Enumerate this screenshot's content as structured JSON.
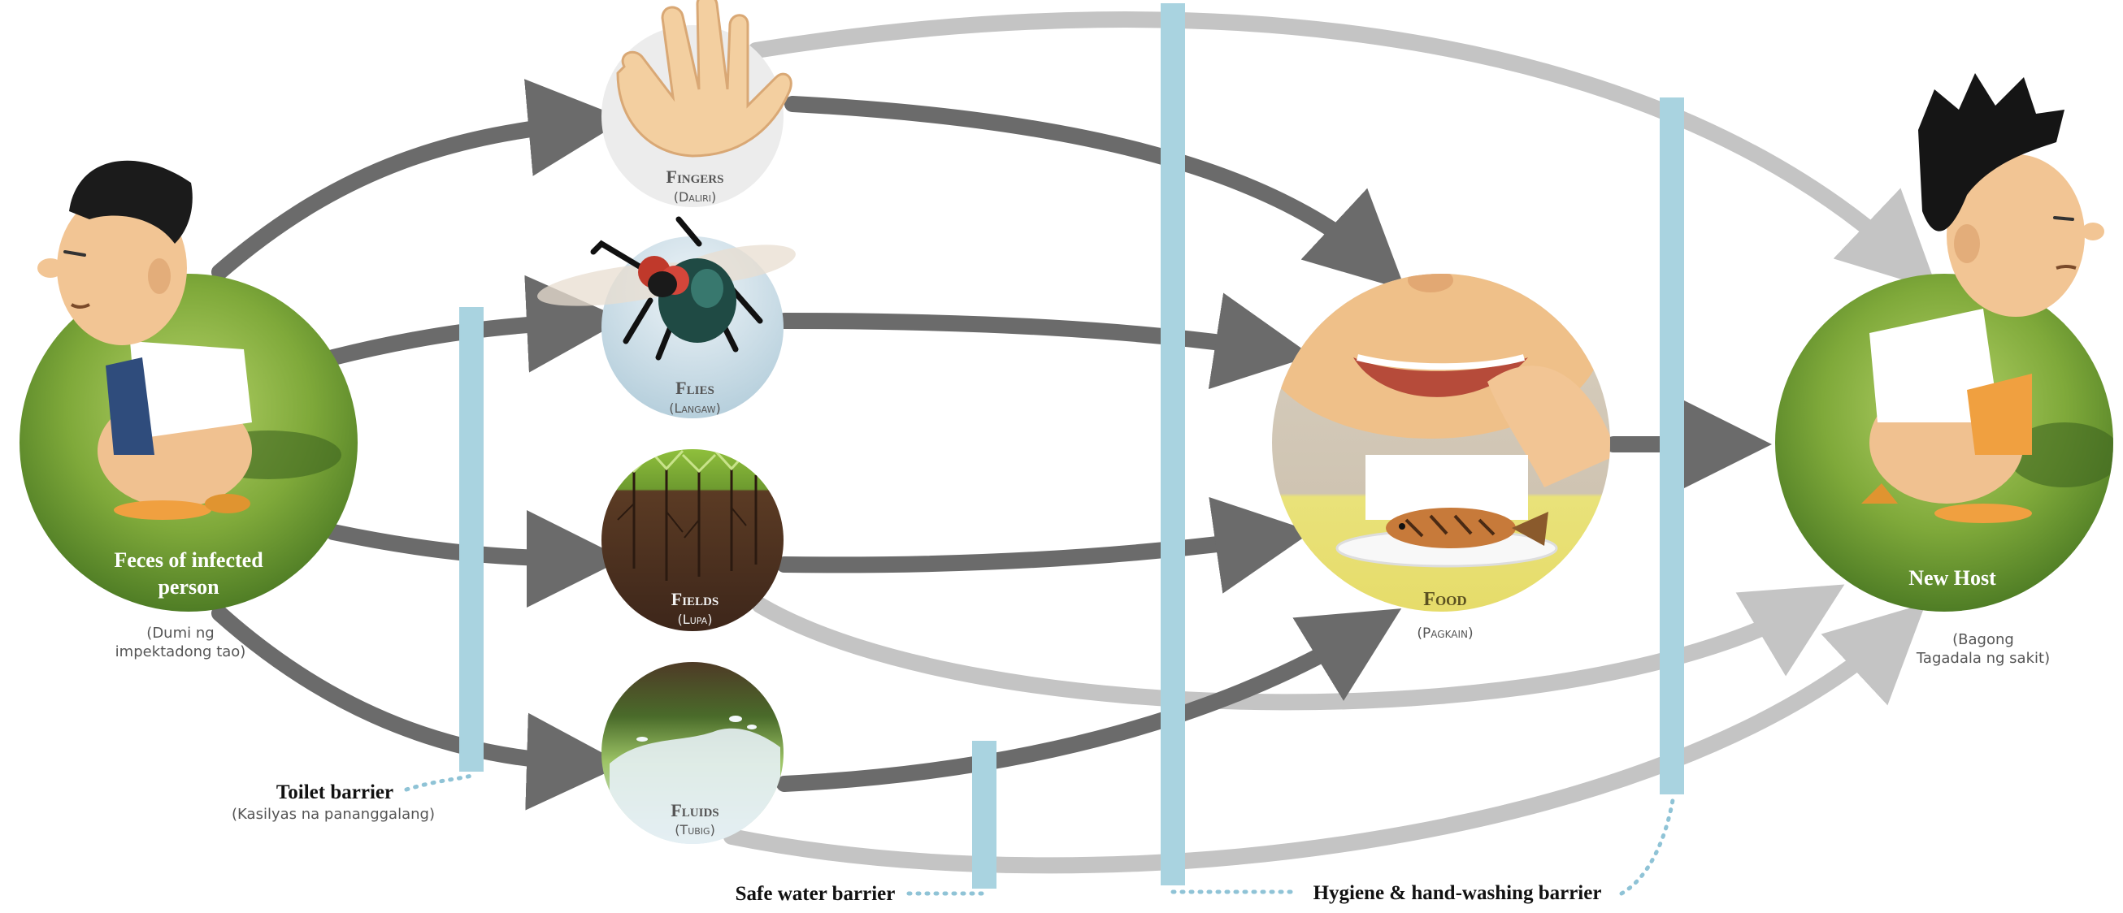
{
  "nodes": {
    "source": {
      "label_line1": "Feces of infected",
      "label_line2": "person",
      "sub_line1": "(Dumi ng",
      "sub_line2": "impektadong tao)"
    },
    "fingers": {
      "label": "Fingers",
      "sub": "(Daliri)"
    },
    "flies": {
      "label": "Flies",
      "sub": "(Langaw)"
    },
    "fields": {
      "label": "Fields",
      "sub": "(Lupa)"
    },
    "fluids": {
      "label": "Fluids",
      "sub": "(Tubig)"
    },
    "food": {
      "label": "Food",
      "sub": "(Pagkain)"
    },
    "host": {
      "label": "New Host",
      "sub_line1": "(Bagong",
      "sub_line2": "Tagadala ng sakit)"
    }
  },
  "barriers": {
    "toilet": {
      "label": "Toilet barrier",
      "sub": "(Kasilyas na pananggalang)"
    },
    "water": {
      "label": "Safe water barrier"
    },
    "hygiene": {
      "label": "Hygiene & hand-washing barrier"
    }
  },
  "colors": {
    "barrier": "#a9d3e0",
    "arrow_dark": "#6b6b6b",
    "arrow_light": "#c4c4c4",
    "dotted": "#8fc3d6",
    "grass": "#8ab33f",
    "label_white": "#ffffff",
    "label_gray": "#555555"
  }
}
